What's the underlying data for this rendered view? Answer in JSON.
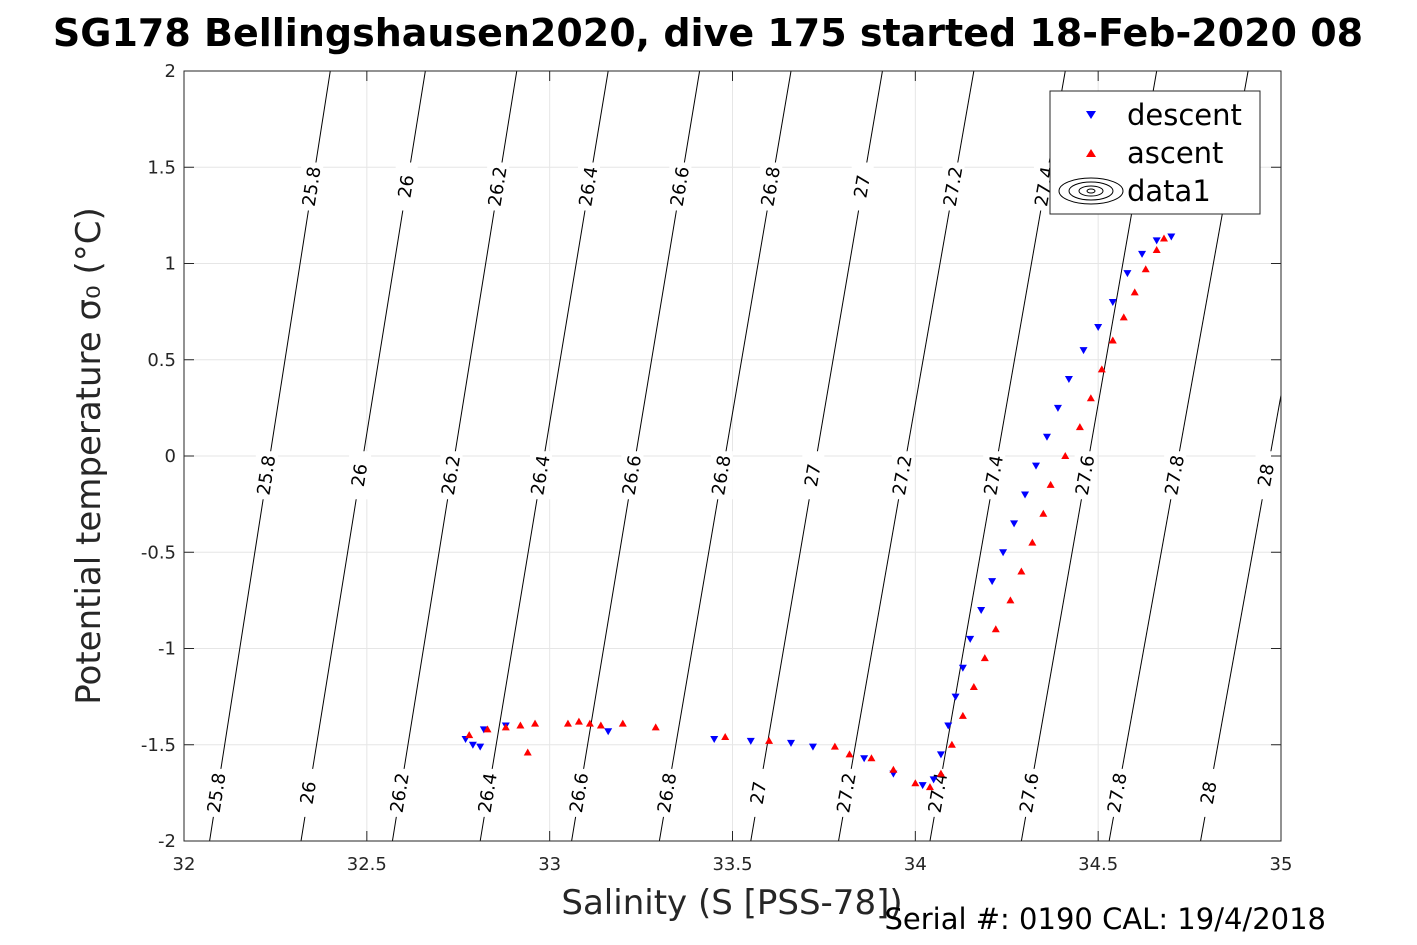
{
  "chart_data": {
    "type": "scatter",
    "title": "SG178 Bellingshausen2020, dive 175 started 18-Feb-2020 08",
    "xlabel": "Salinity (S [PSS-78])",
    "ylabel": "Potential temperature σ₀ (°C)",
    "footer": "Serial #: 0190  CAL: 19/4/2018",
    "xlim": [
      32,
      35
    ],
    "ylim": [
      -2,
      2
    ],
    "x_ticks": [
      "32",
      "32.5",
      "33",
      "33.5",
      "34",
      "34.5",
      "35"
    ],
    "y_ticks": [
      "-2",
      "-1.5",
      "-1",
      "-0.5",
      "0",
      "0.5",
      "1",
      "1.5",
      "2"
    ],
    "grid": true,
    "legend": {
      "placement": "top-right",
      "entries": [
        "descent",
        "ascent",
        "data1"
      ]
    },
    "contours": {
      "levels": [
        25.8,
        26,
        26.2,
        26.4,
        26.6,
        26.8,
        27,
        27.2,
        27.4,
        27.6,
        27.8,
        28
      ],
      "labels": [
        "25.8",
        "26",
        "26.2",
        "26.4",
        "26.6",
        "26.8",
        "27",
        "27.2",
        "27.4",
        "27.6",
        "27.8",
        "28"
      ],
      "x_at_temp_minus2": [
        32.07,
        32.32,
        32.57,
        32.81,
        33.06,
        33.3,
        33.55,
        33.79,
        34.04,
        34.29,
        34.53,
        34.78
      ],
      "x_at_temp_2": [
        32.4,
        32.66,
        32.91,
        33.16,
        33.41,
        33.66,
        33.91,
        34.16,
        34.41,
        34.66,
        34.91,
        35.16
      ]
    },
    "series": [
      {
        "name": "descent",
        "color": "#0000ff",
        "marker": "triangle-down",
        "points": [
          [
            32.77,
            -1.47
          ],
          [
            32.79,
            -1.5
          ],
          [
            32.81,
            -1.51
          ],
          [
            32.82,
            -1.42
          ],
          [
            32.88,
            -1.4
          ],
          [
            33.16,
            -1.43
          ],
          [
            33.45,
            -1.47
          ],
          [
            33.55,
            -1.48
          ],
          [
            33.66,
            -1.49
          ],
          [
            33.72,
            -1.51
          ],
          [
            33.86,
            -1.57
          ],
          [
            33.94,
            -1.65
          ],
          [
            34.02,
            -1.71
          ],
          [
            34.05,
            -1.68
          ],
          [
            34.07,
            -1.55
          ],
          [
            34.09,
            -1.4
          ],
          [
            34.11,
            -1.25
          ],
          [
            34.13,
            -1.1
          ],
          [
            34.15,
            -0.95
          ],
          [
            34.18,
            -0.8
          ],
          [
            34.21,
            -0.65
          ],
          [
            34.24,
            -0.5
          ],
          [
            34.27,
            -0.35
          ],
          [
            34.3,
            -0.2
          ],
          [
            34.33,
            -0.05
          ],
          [
            34.36,
            0.1
          ],
          [
            34.39,
            0.25
          ],
          [
            34.42,
            0.4
          ],
          [
            34.46,
            0.55
          ],
          [
            34.5,
            0.67
          ],
          [
            34.54,
            0.8
          ],
          [
            34.58,
            0.95
          ],
          [
            34.62,
            1.05
          ],
          [
            34.66,
            1.12
          ],
          [
            34.7,
            1.14
          ]
        ]
      },
      {
        "name": "ascent",
        "color": "#ff0000",
        "marker": "triangle-up",
        "points": [
          [
            32.78,
            -1.45
          ],
          [
            32.83,
            -1.42
          ],
          [
            32.88,
            -1.41
          ],
          [
            32.92,
            -1.4
          ],
          [
            32.96,
            -1.39
          ],
          [
            32.94,
            -1.54
          ],
          [
            33.05,
            -1.39
          ],
          [
            33.08,
            -1.38
          ],
          [
            33.11,
            -1.39
          ],
          [
            33.14,
            -1.4
          ],
          [
            33.2,
            -1.39
          ],
          [
            33.29,
            -1.41
          ],
          [
            33.48,
            -1.46
          ],
          [
            33.6,
            -1.48
          ],
          [
            33.78,
            -1.51
          ],
          [
            33.82,
            -1.55
          ],
          [
            33.88,
            -1.57
          ],
          [
            33.94,
            -1.63
          ],
          [
            34.0,
            -1.7
          ],
          [
            34.04,
            -1.72
          ],
          [
            34.07,
            -1.65
          ],
          [
            34.1,
            -1.5
          ],
          [
            34.13,
            -1.35
          ],
          [
            34.16,
            -1.2
          ],
          [
            34.19,
            -1.05
          ],
          [
            34.22,
            -0.9
          ],
          [
            34.26,
            -0.75
          ],
          [
            34.29,
            -0.6
          ],
          [
            34.32,
            -0.45
          ],
          [
            34.35,
            -0.3
          ],
          [
            34.37,
            -0.15
          ],
          [
            34.41,
            0.0
          ],
          [
            34.45,
            0.15
          ],
          [
            34.48,
            0.3
          ],
          [
            34.51,
            0.45
          ],
          [
            34.54,
            0.6
          ],
          [
            34.57,
            0.72
          ],
          [
            34.6,
            0.85
          ],
          [
            34.63,
            0.97
          ],
          [
            34.66,
            1.07
          ],
          [
            34.68,
            1.13
          ]
        ]
      }
    ]
  }
}
